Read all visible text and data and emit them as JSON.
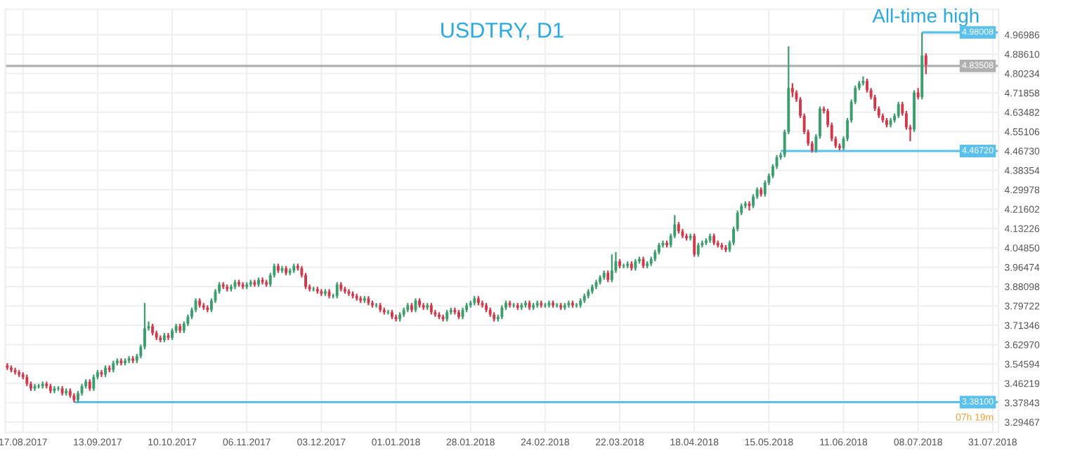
{
  "chart_data": {
    "type": "candlestick",
    "title": "USDTRY, D1",
    "categories": [
      null,
      null,
      null,
      null,
      "17.08.2017",
      null,
      null,
      null,
      null,
      null,
      null,
      null,
      null,
      null,
      null,
      null,
      null,
      null,
      null,
      null,
      null,
      null,
      null,
      "13.09.2017",
      null,
      null,
      null,
      null,
      null,
      null,
      null,
      null,
      null,
      null,
      null,
      null,
      null,
      null,
      null,
      null,
      null,
      null,
      "10.10.2017",
      null,
      null,
      null,
      null,
      null,
      null,
      null,
      null,
      null,
      null,
      null,
      null,
      null,
      null,
      null,
      null,
      null,
      null,
      "06.11.2017",
      null,
      null,
      null,
      null,
      null,
      null,
      null,
      null,
      null,
      null,
      null,
      null,
      null,
      null,
      null,
      null,
      null,
      null,
      "03.12.2017",
      null,
      null,
      null,
      null,
      null,
      null,
      null,
      null,
      null,
      null,
      null,
      null,
      null,
      null,
      null,
      null,
      null,
      null,
      "01.01.2018",
      null,
      null,
      null,
      null,
      null,
      null,
      null,
      null,
      null,
      null,
      null,
      null,
      null,
      null,
      null,
      null,
      null,
      null,
      "28.01.2018",
      null,
      null,
      null,
      null,
      null,
      null,
      null,
      null,
      null,
      null,
      null,
      null,
      null,
      null,
      null,
      null,
      null,
      null,
      "24.02.2018",
      null,
      null,
      null,
      null,
      null,
      null,
      null,
      null,
      null,
      null,
      null,
      null,
      null,
      null,
      null,
      null,
      null,
      null,
      "22.03.2018",
      null,
      null,
      null,
      null,
      null,
      null,
      null,
      null,
      null,
      null,
      null,
      null,
      null,
      null,
      null,
      null,
      null,
      null,
      "18.04.2018",
      null,
      null,
      null,
      null,
      null,
      null,
      null,
      null,
      null,
      null,
      null,
      null,
      null,
      null,
      null,
      null,
      null,
      null,
      "15.05.2018",
      null,
      null,
      null,
      null,
      null,
      null,
      null,
      null,
      null,
      null,
      null,
      null,
      null,
      null,
      null,
      null,
      null,
      null,
      "11.06.2018",
      null,
      null,
      null,
      null,
      null,
      null,
      null,
      null,
      null,
      null,
      null,
      null,
      null,
      null,
      null,
      null,
      null,
      null,
      "08.07.2018",
      null,
      null,
      null,
      null,
      null,
      null,
      null,
      null,
      null,
      null,
      null,
      null,
      null,
      null,
      null,
      null,
      null,
      null,
      "31.07.2018",
      null
    ],
    "ohlc": [
      [
        3.54,
        3.55,
        3.52,
        3.53
      ],
      [
        3.53,
        3.54,
        3.51,
        3.52
      ],
      [
        3.52,
        3.53,
        3.5,
        3.51
      ],
      [
        3.51,
        3.52,
        3.49,
        3.5
      ],
      [
        3.5,
        3.51,
        3.48,
        3.49
      ],
      [
        3.49,
        3.5,
        3.45,
        3.46
      ],
      [
        3.46,
        3.47,
        3.43,
        3.44
      ],
      [
        3.44,
        3.46,
        3.43,
        3.45
      ],
      [
        3.45,
        3.46,
        3.44,
        3.45
      ],
      [
        3.45,
        3.47,
        3.44,
        3.46
      ],
      [
        3.46,
        3.47,
        3.44,
        3.45
      ],
      [
        3.45,
        3.46,
        3.42,
        3.43
      ],
      [
        3.43,
        3.45,
        3.42,
        3.44
      ],
      [
        3.44,
        3.45,
        3.43,
        3.44
      ],
      [
        3.44,
        3.45,
        3.41,
        3.42
      ],
      [
        3.42,
        3.44,
        3.41,
        3.43
      ],
      [
        3.43,
        3.44,
        3.4,
        3.41
      ],
      [
        3.41,
        3.42,
        3.38,
        3.39
      ],
      [
        3.39,
        3.43,
        3.38,
        3.42
      ],
      [
        3.42,
        3.46,
        3.41,
        3.45
      ],
      [
        3.45,
        3.48,
        3.44,
        3.47
      ],
      [
        3.47,
        3.48,
        3.43,
        3.44
      ],
      [
        3.44,
        3.5,
        3.43,
        3.49
      ],
      [
        3.49,
        3.52,
        3.48,
        3.51
      ],
      [
        3.51,
        3.52,
        3.49,
        3.5
      ],
      [
        3.5,
        3.54,
        3.49,
        3.53
      ],
      [
        3.53,
        3.54,
        3.51,
        3.52
      ],
      [
        3.52,
        3.56,
        3.51,
        3.55
      ],
      [
        3.55,
        3.57,
        3.54,
        3.56
      ],
      [
        3.56,
        3.57,
        3.54,
        3.55
      ],
      [
        3.55,
        3.57,
        3.54,
        3.56
      ],
      [
        3.56,
        3.58,
        3.55,
        3.57
      ],
      [
        3.57,
        3.58,
        3.55,
        3.56
      ],
      [
        3.56,
        3.59,
        3.55,
        3.58
      ],
      [
        3.58,
        3.63,
        3.57,
        3.62
      ],
      [
        3.62,
        3.81,
        3.61,
        3.7
      ],
      [
        3.7,
        3.73,
        3.69,
        3.71
      ],
      [
        3.71,
        3.72,
        3.67,
        3.68
      ],
      [
        3.68,
        3.69,
        3.65,
        3.66
      ],
      [
        3.66,
        3.67,
        3.64,
        3.65
      ],
      [
        3.65,
        3.68,
        3.64,
        3.67
      ],
      [
        3.67,
        3.68,
        3.65,
        3.66
      ],
      [
        3.66,
        3.7,
        3.65,
        3.69
      ],
      [
        3.69,
        3.72,
        3.68,
        3.71
      ],
      [
        3.71,
        3.72,
        3.68,
        3.69
      ],
      [
        3.69,
        3.73,
        3.68,
        3.72
      ],
      [
        3.72,
        3.76,
        3.71,
        3.75
      ],
      [
        3.75,
        3.79,
        3.74,
        3.78
      ],
      [
        3.78,
        3.83,
        3.77,
        3.82
      ],
      [
        3.82,
        3.83,
        3.79,
        3.8
      ],
      [
        3.8,
        3.81,
        3.78,
        3.79
      ],
      [
        3.79,
        3.8,
        3.77,
        3.78
      ],
      [
        3.78,
        3.83,
        3.77,
        3.82
      ],
      [
        3.82,
        3.87,
        3.81,
        3.86
      ],
      [
        3.86,
        3.9,
        3.85,
        3.89
      ],
      [
        3.89,
        3.9,
        3.87,
        3.88
      ],
      [
        3.88,
        3.89,
        3.86,
        3.87
      ],
      [
        3.87,
        3.89,
        3.86,
        3.88
      ],
      [
        3.88,
        3.91,
        3.87,
        3.9
      ],
      [
        3.9,
        3.91,
        3.88,
        3.89
      ],
      [
        3.89,
        3.9,
        3.87,
        3.88
      ],
      [
        3.88,
        3.9,
        3.87,
        3.89
      ],
      [
        3.89,
        3.91,
        3.88,
        3.9
      ],
      [
        3.9,
        3.91,
        3.88,
        3.89
      ],
      [
        3.89,
        3.92,
        3.88,
        3.91
      ],
      [
        3.91,
        3.92,
        3.89,
        3.9
      ],
      [
        3.9,
        3.91,
        3.88,
        3.89
      ],
      [
        3.89,
        3.94,
        3.88,
        3.93
      ],
      [
        3.93,
        3.98,
        3.92,
        3.97
      ],
      [
        3.97,
        3.98,
        3.94,
        3.95
      ],
      [
        3.95,
        3.97,
        3.94,
        3.96
      ],
      [
        3.96,
        3.97,
        3.93,
        3.94
      ],
      [
        3.94,
        3.96,
        3.93,
        3.95
      ],
      [
        3.95,
        3.98,
        3.94,
        3.97
      ],
      [
        3.97,
        3.98,
        3.95,
        3.96
      ],
      [
        3.96,
        3.97,
        3.92,
        3.93
      ],
      [
        3.93,
        3.94,
        3.87,
        3.88
      ],
      [
        3.88,
        3.89,
        3.86,
        3.87
      ],
      [
        3.87,
        3.88,
        3.86,
        3.87
      ],
      [
        3.87,
        3.88,
        3.85,
        3.86
      ],
      [
        3.86,
        3.87,
        3.84,
        3.85
      ],
      [
        3.85,
        3.87,
        3.84,
        3.86
      ],
      [
        3.86,
        3.87,
        3.83,
        3.84
      ],
      [
        3.84,
        3.85,
        3.83,
        3.84
      ],
      [
        3.84,
        3.9,
        3.83,
        3.89
      ],
      [
        3.89,
        3.9,
        3.86,
        3.87
      ],
      [
        3.87,
        3.88,
        3.85,
        3.86
      ],
      [
        3.86,
        3.87,
        3.84,
        3.85
      ],
      [
        3.85,
        3.86,
        3.83,
        3.84
      ],
      [
        3.84,
        3.85,
        3.82,
        3.83
      ],
      [
        3.83,
        3.84,
        3.81,
        3.82
      ],
      [
        3.82,
        3.84,
        3.81,
        3.83
      ],
      [
        3.83,
        3.84,
        3.8,
        3.81
      ],
      [
        3.81,
        3.82,
        3.79,
        3.8
      ],
      [
        3.8,
        3.81,
        3.79,
        3.8
      ],
      [
        3.8,
        3.81,
        3.77,
        3.78
      ],
      [
        3.78,
        3.79,
        3.76,
        3.77
      ],
      [
        3.77,
        3.78,
        3.76,
        3.77
      ],
      [
        3.77,
        3.78,
        3.74,
        3.75
      ],
      [
        3.75,
        3.76,
        3.73,
        3.74
      ],
      [
        3.74,
        3.77,
        3.73,
        3.76
      ],
      [
        3.76,
        3.79,
        3.75,
        3.78
      ],
      [
        3.78,
        3.81,
        3.77,
        3.8
      ],
      [
        3.8,
        3.81,
        3.77,
        3.78
      ],
      [
        3.78,
        3.83,
        3.77,
        3.82
      ],
      [
        3.82,
        3.83,
        3.79,
        3.8
      ],
      [
        3.8,
        3.81,
        3.78,
        3.79
      ],
      [
        3.79,
        3.81,
        3.78,
        3.8
      ],
      [
        3.8,
        3.81,
        3.76,
        3.77
      ],
      [
        3.77,
        3.78,
        3.75,
        3.76
      ],
      [
        3.76,
        3.77,
        3.74,
        3.75
      ],
      [
        3.75,
        3.76,
        3.73,
        3.74
      ],
      [
        3.74,
        3.78,
        3.73,
        3.77
      ],
      [
        3.77,
        3.79,
        3.76,
        3.78
      ],
      [
        3.78,
        3.79,
        3.76,
        3.77
      ],
      [
        3.77,
        3.78,
        3.74,
        3.75
      ],
      [
        3.75,
        3.79,
        3.74,
        3.78
      ],
      [
        3.78,
        3.81,
        3.77,
        3.8
      ],
      [
        3.8,
        3.82,
        3.79,
        3.81
      ],
      [
        3.81,
        3.84,
        3.8,
        3.83
      ],
      [
        3.83,
        3.84,
        3.8,
        3.81
      ],
      [
        3.81,
        3.82,
        3.79,
        3.8
      ],
      [
        3.8,
        3.81,
        3.77,
        3.78
      ],
      [
        3.78,
        3.79,
        3.75,
        3.76
      ],
      [
        3.76,
        3.77,
        3.73,
        3.74
      ],
      [
        3.74,
        3.76,
        3.73,
        3.75
      ],
      [
        3.75,
        3.8,
        3.74,
        3.79
      ],
      [
        3.79,
        3.82,
        3.78,
        3.81
      ],
      [
        3.81,
        3.82,
        3.79,
        3.8
      ],
      [
        3.8,
        3.81,
        3.79,
        3.8
      ],
      [
        3.8,
        3.81,
        3.78,
        3.79
      ],
      [
        3.79,
        3.81,
        3.78,
        3.8
      ],
      [
        3.8,
        3.82,
        3.79,
        3.81
      ],
      [
        3.81,
        3.82,
        3.78,
        3.79
      ],
      [
        3.79,
        3.81,
        3.78,
        3.8
      ],
      [
        3.8,
        3.82,
        3.79,
        3.81
      ],
      [
        3.81,
        3.82,
        3.79,
        3.8
      ],
      [
        3.8,
        3.81,
        3.79,
        3.8
      ],
      [
        3.8,
        3.82,
        3.79,
        3.81
      ],
      [
        3.81,
        3.82,
        3.79,
        3.8
      ],
      [
        3.8,
        3.81,
        3.79,
        3.8
      ],
      [
        3.8,
        3.81,
        3.78,
        3.79
      ],
      [
        3.79,
        3.81,
        3.78,
        3.8
      ],
      [
        3.8,
        3.82,
        3.79,
        3.81
      ],
      [
        3.81,
        3.82,
        3.79,
        3.8
      ],
      [
        3.8,
        3.81,
        3.79,
        3.8
      ],
      [
        3.8,
        3.83,
        3.79,
        3.82
      ],
      [
        3.82,
        3.85,
        3.81,
        3.84
      ],
      [
        3.84,
        3.87,
        3.83,
        3.86
      ],
      [
        3.86,
        3.89,
        3.85,
        3.88
      ],
      [
        3.88,
        3.91,
        3.87,
        3.9
      ],
      [
        3.9,
        3.93,
        3.89,
        3.92
      ],
      [
        3.92,
        3.95,
        3.91,
        3.94
      ],
      [
        3.94,
        3.95,
        3.9,
        3.91
      ],
      [
        3.91,
        4.02,
        3.9,
        3.95
      ],
      [
        3.95,
        4.03,
        3.94,
        3.99
      ],
      [
        3.99,
        4.0,
        3.96,
        3.97
      ],
      [
        3.97,
        3.98,
        3.96,
        3.97
      ],
      [
        3.97,
        3.99,
        3.96,
        3.98
      ],
      [
        3.98,
        3.99,
        3.95,
        3.96
      ],
      [
        3.96,
        4.0,
        3.95,
        3.99
      ],
      [
        3.99,
        4.01,
        3.98,
        4.0
      ],
      [
        4.0,
        4.01,
        3.96,
        3.97
      ],
      [
        3.97,
        3.99,
        3.96,
        3.98
      ],
      [
        3.98,
        4.01,
        3.97,
        4.0
      ],
      [
        4.0,
        4.04,
        3.99,
        4.03
      ],
      [
        4.03,
        4.07,
        4.02,
        4.06
      ],
      [
        4.06,
        4.08,
        4.05,
        4.07
      ],
      [
        4.07,
        4.08,
        4.05,
        4.06
      ],
      [
        4.06,
        4.11,
        4.05,
        4.1
      ],
      [
        4.1,
        4.19,
        4.09,
        4.15
      ],
      [
        4.15,
        4.16,
        4.11,
        4.12
      ],
      [
        4.12,
        4.13,
        4.09,
        4.1
      ],
      [
        4.1,
        4.11,
        4.08,
        4.09
      ],
      [
        4.09,
        4.11,
        4.08,
        4.1
      ],
      [
        4.1,
        4.11,
        4.01,
        4.02
      ],
      [
        4.02,
        4.07,
        4.01,
        4.06
      ],
      [
        4.06,
        4.08,
        4.05,
        4.07
      ],
      [
        4.07,
        4.09,
        4.06,
        4.08
      ],
      [
        4.08,
        4.11,
        4.07,
        4.1
      ],
      [
        4.1,
        4.11,
        4.06,
        4.07
      ],
      [
        4.07,
        4.08,
        4.05,
        4.06
      ],
      [
        4.06,
        4.07,
        4.04,
        4.05
      ],
      [
        4.05,
        4.06,
        4.03,
        4.04
      ],
      [
        4.04,
        4.08,
        4.03,
        4.07
      ],
      [
        4.07,
        4.14,
        4.06,
        4.13
      ],
      [
        4.13,
        4.21,
        4.12,
        4.2
      ],
      [
        4.2,
        4.24,
        4.19,
        4.23
      ],
      [
        4.23,
        4.25,
        4.22,
        4.24
      ],
      [
        4.24,
        4.25,
        4.21,
        4.23
      ],
      [
        4.23,
        4.28,
        4.22,
        4.27
      ],
      [
        4.27,
        4.31,
        4.26,
        4.3
      ],
      [
        4.3,
        4.31,
        4.27,
        4.28
      ],
      [
        4.28,
        4.34,
        4.27,
        4.33
      ],
      [
        4.33,
        4.37,
        4.32,
        4.36
      ],
      [
        4.36,
        4.41,
        4.35,
        4.4
      ],
      [
        4.4,
        4.45,
        4.39,
        4.44
      ],
      [
        4.44,
        4.46,
        4.43,
        4.45
      ],
      [
        4.45,
        4.56,
        4.44,
        4.55
      ],
      [
        4.55,
        4.92,
        4.54,
        4.74
      ],
      [
        4.74,
        4.76,
        4.7,
        4.72
      ],
      [
        4.72,
        4.73,
        4.68,
        4.69
      ],
      [
        4.69,
        4.7,
        4.61,
        4.62
      ],
      [
        4.62,
        4.63,
        4.54,
        4.55
      ],
      [
        4.55,
        4.56,
        4.49,
        4.5
      ],
      [
        4.5,
        4.51,
        4.46,
        4.47
      ],
      [
        4.47,
        4.54,
        4.46,
        4.53
      ],
      [
        4.53,
        4.66,
        4.52,
        4.65
      ],
      [
        4.65,
        4.66,
        4.63,
        4.64
      ],
      [
        4.64,
        4.65,
        4.57,
        4.58
      ],
      [
        4.58,
        4.59,
        4.51,
        4.52
      ],
      [
        4.52,
        4.53,
        4.48,
        4.49
      ],
      [
        4.49,
        4.5,
        4.47,
        4.48
      ],
      [
        4.48,
        4.53,
        4.47,
        4.52
      ],
      [
        4.52,
        4.61,
        4.51,
        4.6
      ],
      [
        4.6,
        4.69,
        4.59,
        4.68
      ],
      [
        4.68,
        4.75,
        4.67,
        4.74
      ],
      [
        4.74,
        4.77,
        4.73,
        4.76
      ],
      [
        4.76,
        4.79,
        4.75,
        4.77
      ],
      [
        4.77,
        4.78,
        4.72,
        4.73
      ],
      [
        4.73,
        4.74,
        4.69,
        4.7
      ],
      [
        4.7,
        4.71,
        4.64,
        4.65
      ],
      [
        4.65,
        4.66,
        4.61,
        4.62
      ],
      [
        4.62,
        4.63,
        4.59,
        4.6
      ],
      [
        4.6,
        4.61,
        4.57,
        4.58
      ],
      [
        4.58,
        4.61,
        4.57,
        4.6
      ],
      [
        4.6,
        4.63,
        4.59,
        4.62
      ],
      [
        4.62,
        4.68,
        4.61,
        4.67
      ],
      [
        4.67,
        4.68,
        4.62,
        4.63
      ],
      [
        4.63,
        4.64,
        4.56,
        4.57
      ],
      [
        4.57,
        4.58,
        4.51,
        4.56
      ],
      [
        4.56,
        4.73,
        4.55,
        4.72
      ],
      [
        4.72,
        4.74,
        4.69,
        4.7
      ],
      [
        4.7,
        4.98,
        4.69,
        4.88
      ],
      [
        4.88,
        4.89,
        4.8,
        4.84
      ],
      null,
      null,
      null,
      null,
      null,
      null,
      null,
      null,
      null,
      null,
      null,
      null,
      null,
      null,
      null,
      null,
      null,
      null
    ],
    "colors": [
      "#d1394b",
      "#d1394b",
      "#d1394b",
      "#d1394b",
      "#d1394b",
      "#d1394b",
      "#d1394b",
      "#3c9d6d",
      "#3c9d6d",
      "#3c9d6d",
      "#d1394b",
      "#d1394b",
      "#3c9d6d",
      "#3c9d6d",
      "#d1394b",
      "#3c9d6d",
      "#d1394b",
      "#d1394b",
      "#3c9d6d",
      "#3c9d6d",
      "#3c9d6d",
      "#d1394b",
      "#3c9d6d",
      "#3c9d6d",
      "#d1394b",
      "#3c9d6d",
      "#d1394b",
      "#3c9d6d",
      "#3c9d6d",
      "#d1394b",
      "#3c9d6d",
      "#3c9d6d",
      "#d1394b",
      "#3c9d6d",
      "#3c9d6d",
      "#3c9d6d",
      "#3c9d6d",
      "#d1394b",
      "#d1394b",
      "#d1394b",
      "#3c9d6d",
      "#d1394b",
      "#3c9d6d",
      "#3c9d6d",
      "#d1394b",
      "#3c9d6d",
      "#3c9d6d",
      "#3c9d6d",
      "#3c9d6d",
      "#d1394b",
      "#d1394b",
      "#d1394b",
      "#3c9d6d",
      "#3c9d6d",
      "#3c9d6d",
      "#d1394b",
      "#d1394b",
      "#3c9d6d",
      "#3c9d6d",
      "#d1394b",
      "#d1394b",
      "#3c9d6d",
      "#3c9d6d",
      "#d1394b",
      "#3c9d6d",
      "#d1394b",
      "#d1394b",
      "#3c9d6d",
      "#3c9d6d",
      "#d1394b",
      "#3c9d6d",
      "#d1394b",
      "#3c9d6d",
      "#3c9d6d",
      "#d1394b",
      "#d1394b",
      "#d1394b",
      "#d1394b",
      "#3c9d6d",
      "#d1394b",
      "#d1394b",
      "#3c9d6d",
      "#d1394b",
      "#3c9d6d",
      "#3c9d6d",
      "#d1394b",
      "#d1394b",
      "#d1394b",
      "#d1394b",
      "#d1394b",
      "#d1394b",
      "#3c9d6d",
      "#d1394b",
      "#d1394b",
      "#3c9d6d",
      "#d1394b",
      "#d1394b",
      "#3c9d6d",
      "#d1394b",
      "#d1394b",
      "#3c9d6d",
      "#3c9d6d",
      "#3c9d6d",
      "#d1394b",
      "#3c9d6d",
      "#d1394b",
      "#d1394b",
      "#3c9d6d",
      "#d1394b",
      "#d1394b",
      "#d1394b",
      "#d1394b",
      "#3c9d6d",
      "#3c9d6d",
      "#d1394b",
      "#d1394b",
      "#3c9d6d",
      "#3c9d6d",
      "#3c9d6d",
      "#3c9d6d",
      "#d1394b",
      "#d1394b",
      "#d1394b",
      "#d1394b",
      "#d1394b",
      "#3c9d6d",
      "#3c9d6d",
      "#3c9d6d",
      "#d1394b",
      "#3c9d6d",
      "#d1394b",
      "#3c9d6d",
      "#3c9d6d",
      "#d1394b",
      "#3c9d6d",
      "#3c9d6d",
      "#d1394b",
      "#3c9d6d",
      "#3c9d6d",
      "#d1394b",
      "#3c9d6d",
      "#d1394b",
      "#3c9d6d",
      "#3c9d6d",
      "#d1394b",
      "#3c9d6d",
      "#3c9d6d",
      "#3c9d6d",
      "#3c9d6d",
      "#3c9d6d",
      "#3c9d6d",
      "#3c9d6d",
      "#3c9d6d",
      "#d1394b",
      "#3c9d6d",
      "#3c9d6d",
      "#d1394b",
      "#3c9d6d",
      "#3c9d6d",
      "#d1394b",
      "#3c9d6d",
      "#3c9d6d",
      "#d1394b",
      "#3c9d6d",
      "#3c9d6d",
      "#3c9d6d",
      "#3c9d6d",
      "#3c9d6d",
      "#d1394b",
      "#3c9d6d",
      "#3c9d6d",
      "#d1394b",
      "#d1394b",
      "#d1394b",
      "#3c9d6d",
      "#d1394b",
      "#3c9d6d",
      "#3c9d6d",
      "#3c9d6d",
      "#3c9d6d",
      "#d1394b",
      "#d1394b",
      "#d1394b",
      "#d1394b",
      "#3c9d6d",
      "#3c9d6d",
      "#3c9d6d",
      "#3c9d6d",
      "#3c9d6d",
      "#d1394b",
      "#3c9d6d",
      "#3c9d6d",
      "#d1394b",
      "#3c9d6d",
      "#3c9d6d",
      "#3c9d6d",
      "#3c9d6d",
      "#3c9d6d",
      "#3c9d6d",
      "#3c9d6d",
      "#d1394b",
      "#d1394b",
      "#d1394b",
      "#d1394b",
      "#d1394b",
      "#d1394b",
      "#3c9d6d",
      "#3c9d6d",
      "#d1394b",
      "#d1394b",
      "#d1394b",
      "#d1394b",
      "#d1394b",
      "#3c9d6d",
      "#3c9d6d",
      "#3c9d6d",
      "#3c9d6d",
      "#3c9d6d",
      "#3c9d6d",
      "#d1394b",
      "#d1394b",
      "#d1394b",
      "#d1394b",
      "#d1394b",
      "#d1394b",
      "#3c9d6d",
      "#3c9d6d",
      "#3c9d6d",
      "#d1394b",
      "#d1394b",
      "#d1394b",
      "#3c9d6d",
      "#d1394b",
      "#3c9d6d",
      "#d1394b",
      null,
      null,
      null,
      null,
      null,
      null,
      null,
      null,
      null,
      null,
      null,
      null,
      null,
      null,
      null,
      null,
      null,
      null
    ],
    "ylim": [
      3.25,
      5.08
    ],
    "yticks": [
      3.29467,
      3.37843,
      3.46219,
      3.54594,
      {
        "value": 3.6297,
        "label": "3.62970"
      },
      3.71346,
      3.79722,
      3.88098,
      3.96474,
      {
        "value": 4.0485,
        "label": "4.04850"
      },
      4.13226,
      4.21602,
      4.29978,
      4.38354,
      {
        "value": 4.4673,
        "label": "4.46730"
      },
      4.55106,
      4.63482,
      4.71858,
      4.80234,
      {
        "value": 4.8861,
        "label": "4.88610"
      },
      4.96986
    ],
    "grid": true,
    "ref_lines": [
      {
        "axis": "y",
        "value": 4.98008,
        "label": "4.98008",
        "color": "#5bc0eb"
      },
      {
        "axis": "y",
        "value": 4.83508,
        "label": "4.83508",
        "color": "#b0b0b0"
      },
      {
        "axis": "y",
        "value": 4.4672,
        "label": "4.46720",
        "color": "#5bc0eb"
      },
      {
        "axis": "y",
        "value": 3.381,
        "label": "3.38100",
        "color": "#5bc0eb"
      }
    ],
    "annotations": [
      {
        "text": "All-time high",
        "y": 4.98008
      },
      "07h 19m"
    ]
  }
}
